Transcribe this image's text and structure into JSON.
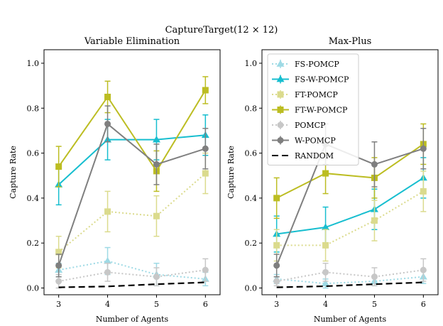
{
  "figure": {
    "suptitle": "CaptureTarget(12 × 12)"
  },
  "chart_data": [
    {
      "type": "line",
      "title": "Variable Elimination",
      "xlabel": "Number of Agents",
      "ylabel": "Capture Rate",
      "x": [
        3,
        4,
        5,
        6
      ],
      "xticks": [
        "3",
        "4",
        "5",
        "6"
      ],
      "ylim": [
        -0.03,
        1.06
      ],
      "yticks": [
        "0.0",
        "0.2",
        "0.4",
        "0.6",
        "0.8",
        "1.0"
      ],
      "grid": false,
      "series": [
        {
          "name": "FS-POMCP",
          "color": "#9edae5",
          "style": "dotted",
          "marker": "triangle",
          "values": [
            0.08,
            0.12,
            0.06,
            0.04
          ],
          "err": [
            0.03,
            0.06,
            0.05,
            0.03
          ]
        },
        {
          "name": "FS-W-POMCP",
          "color": "#17becf",
          "style": "solid",
          "marker": "triangle",
          "values": [
            0.46,
            0.66,
            0.66,
            0.68
          ],
          "err": [
            0.09,
            0.09,
            0.09,
            0.09
          ]
        },
        {
          "name": "FT-POMCP",
          "color": "#dbdb8d",
          "style": "dotted",
          "marker": "square",
          "values": [
            0.16,
            0.34,
            0.32,
            0.51
          ],
          "err": [
            0.07,
            0.09,
            0.09,
            0.09
          ]
        },
        {
          "name": "FT-W-POMCP",
          "color": "#bcbd22",
          "style": "solid",
          "marker": "square",
          "values": [
            0.54,
            0.85,
            0.52,
            0.88
          ],
          "err": [
            0.09,
            0.07,
            0.09,
            0.06
          ]
        },
        {
          "name": "POMCP",
          "color": "#c7c7c7",
          "style": "dotted",
          "marker": "circle",
          "values": [
            0.03,
            0.07,
            0.05,
            0.08
          ],
          "err": [
            0.03,
            0.04,
            0.04,
            0.05
          ]
        },
        {
          "name": "W-POMCP",
          "color": "#7f7f7f",
          "style": "solid",
          "marker": "circle",
          "values": [
            0.1,
            0.73,
            0.55,
            0.62
          ],
          "err": [
            0.05,
            0.08,
            0.09,
            0.09
          ]
        },
        {
          "name": "RANDOM",
          "color": "#000000",
          "style": "dashed",
          "marker": "none",
          "values": [
            0.003,
            0.007,
            0.017,
            0.025
          ],
          "err": [
            0,
            0,
            0,
            0
          ]
        }
      ]
    },
    {
      "type": "line",
      "title": "Max-Plus",
      "xlabel": "Number of Agents",
      "ylabel": "Capture Rate",
      "x": [
        3,
        4,
        5,
        6
      ],
      "xticks": [
        "3",
        "4",
        "5",
        "6"
      ],
      "ylim": [
        -0.03,
        1.06
      ],
      "yticks": [
        "0.0",
        "0.2",
        "0.4",
        "0.6",
        "0.8",
        "1.0"
      ],
      "grid": false,
      "legend": {
        "position": "upper-left"
      },
      "series": [
        {
          "name": "FS-POMCP",
          "color": "#9edae5",
          "style": "dotted",
          "marker": "triangle",
          "values": [
            0.04,
            0.02,
            0.03,
            0.05
          ],
          "err": [
            0.02,
            0.02,
            0.02,
            0.03
          ]
        },
        {
          "name": "FS-W-POMCP",
          "color": "#17becf",
          "style": "solid",
          "marker": "triangle",
          "values": [
            0.24,
            0.27,
            0.35,
            0.49
          ],
          "err": [
            0.08,
            0.09,
            0.09,
            0.09
          ]
        },
        {
          "name": "FT-POMCP",
          "color": "#dbdb8d",
          "style": "dotted",
          "marker": "square",
          "values": [
            0.19,
            0.19,
            0.3,
            0.43
          ],
          "err": [
            0.07,
            0.07,
            0.09,
            0.09
          ]
        },
        {
          "name": "FT-W-POMCP",
          "color": "#bcbd22",
          "style": "solid",
          "marker": "square",
          "values": [
            0.4,
            0.51,
            0.49,
            0.64
          ],
          "err": [
            0.09,
            0.09,
            0.09,
            0.09
          ]
        },
        {
          "name": "POMCP",
          "color": "#c7c7c7",
          "style": "dotted",
          "marker": "circle",
          "values": [
            0.03,
            0.07,
            0.05,
            0.08
          ],
          "err": [
            0.02,
            0.04,
            0.04,
            0.05
          ]
        },
        {
          "name": "W-POMCP",
          "color": "#7f7f7f",
          "style": "solid",
          "marker": "circle",
          "values": [
            0.1,
            0.64,
            0.55,
            0.62
          ],
          "err": [
            0.05,
            0.09,
            0.1,
            0.09
          ]
        },
        {
          "name": "RANDOM",
          "color": "#000000",
          "style": "dashed",
          "marker": "none",
          "values": [
            0.003,
            0.008,
            0.017,
            0.025
          ],
          "err": [
            0,
            0,
            0,
            0
          ]
        }
      ]
    }
  ]
}
